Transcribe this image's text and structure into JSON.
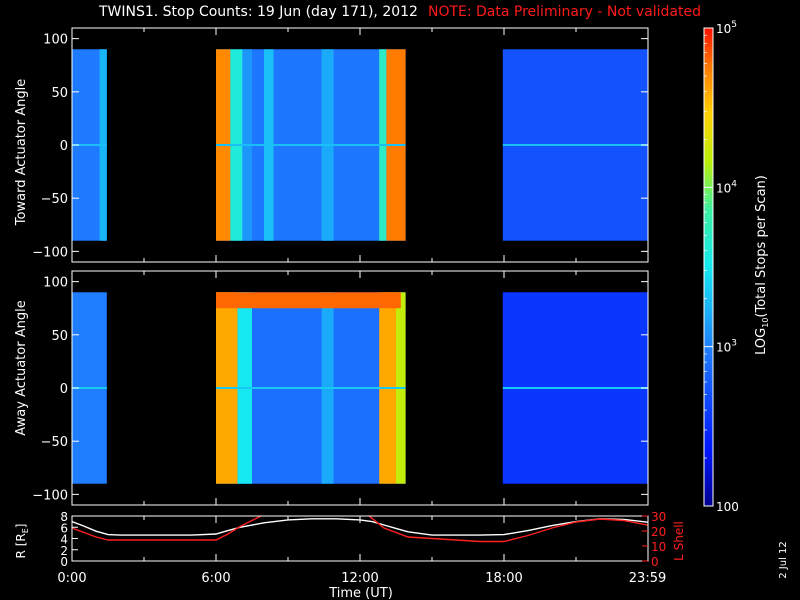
{
  "header": {
    "title": "TWINS1. Stop Counts: 19 Jun (day 171), 2012",
    "note": "NOTE: Data Preliminary - Not validated"
  },
  "footer": {
    "date_stamp": "2 Jul 12"
  },
  "colors": {
    "background": "#000000",
    "foreground": "#ffffff",
    "note": "#ff1a1a",
    "l_shell": "#ff2020",
    "r_line": "#ffffff"
  },
  "colorbar": {
    "label": "LOG10(Total Stops per Scan)",
    "label_prefix": "LOG",
    "label_sub": "10",
    "label_suffix": "(Total Stops per Scan)",
    "scale": "log",
    "range": [
      100,
      100000
    ],
    "ticks": [
      {
        "value": 100000,
        "base": "10",
        "exp": "5"
      },
      {
        "value": 10000,
        "base": "10",
        "exp": "4"
      },
      {
        "value": 1000,
        "base": "10",
        "exp": "3"
      },
      {
        "value": 100,
        "base": "100",
        "exp": ""
      }
    ]
  },
  "chart_data": [
    {
      "type": "heatmap",
      "name": "toward",
      "ylabel": "Toward Actuator Angle",
      "xlim": [
        0,
        24
      ],
      "ylim": [
        -110,
        110
      ],
      "yticks": [
        100,
        50,
        0,
        -50,
        -100
      ],
      "y_data_range": [
        -90,
        90
      ],
      "segments": [
        {
          "start": 0.0,
          "end": 1.45,
          "level": 2.96,
          "vstripe": {
            "start": 1.15,
            "end": 1.45,
            "level": 3.25
          }
        },
        {
          "start": 6.0,
          "end": 13.9,
          "level": 2.95
        },
        {
          "start": 17.95,
          "end": 23.98,
          "level": 2.72
        }
      ],
      "bands": [
        {
          "start": 6.0,
          "end": 6.6,
          "level": 4.7
        },
        {
          "start": 6.6,
          "end": 7.1,
          "level": 3.6
        },
        {
          "start": 7.1,
          "end": 7.5,
          "level": 3.1
        },
        {
          "start": 8.0,
          "end": 8.4,
          "level": 3.3
        },
        {
          "start": 10.4,
          "end": 10.9,
          "level": 3.2
        },
        {
          "start": 12.8,
          "end": 13.1,
          "level": 3.7
        },
        {
          "start": 13.1,
          "end": 13.9,
          "level": 4.75
        }
      ],
      "zero_line_level": 3.3
    },
    {
      "type": "heatmap",
      "name": "away",
      "ylabel": "Away Actuator Angle",
      "xlim": [
        0,
        24
      ],
      "ylim": [
        -110,
        110
      ],
      "yticks": [
        100,
        50,
        0,
        -50,
        -100
      ],
      "y_data_range": [
        -90,
        90
      ],
      "segments": [
        {
          "start": 0.0,
          "end": 1.45,
          "level": 2.98
        },
        {
          "start": 6.0,
          "end": 13.9,
          "level": 2.9
        },
        {
          "start": 17.95,
          "end": 23.98,
          "level": 2.55
        }
      ],
      "bands": [
        {
          "start": 6.0,
          "end": 6.9,
          "level": 4.6
        },
        {
          "start": 6.9,
          "end": 7.5,
          "level": 3.5
        },
        {
          "start": 10.4,
          "end": 10.9,
          "level": 3.2
        },
        {
          "start": 12.8,
          "end": 13.5,
          "level": 4.6
        },
        {
          "start": 13.5,
          "end": 13.9,
          "level": 4.2
        }
      ],
      "top_band": {
        "start": 6.0,
        "end": 13.7,
        "y_from": 75,
        "level": 4.8
      },
      "zero_line_level": 3.35
    },
    {
      "type": "line",
      "name": "ephemeris",
      "xlabel": "Time (UT)",
      "xlim": [
        0,
        24
      ],
      "xticks": [
        {
          "value": 0,
          "label": "0:00"
        },
        {
          "value": 6,
          "label": "6:00"
        },
        {
          "value": 12,
          "label": "12:00"
        },
        {
          "value": 18,
          "label": "18:00"
        },
        {
          "value": 23.98,
          "label": "23:59"
        }
      ],
      "left_axis": {
        "label_prefix": "R [R",
        "label_sub": "E",
        "label_suffix": "]",
        "ylim": [
          0,
          8
        ],
        "ticks": [
          0,
          2,
          4,
          6,
          8
        ]
      },
      "right_axis": {
        "label": "L Shell",
        "ylim": [
          0,
          30
        ],
        "ticks": [
          0,
          10,
          20,
          30
        ]
      },
      "series": [
        {
          "name": "R [RE]",
          "axis": "left",
          "color": "#ffffff",
          "x": [
            0,
            0.5,
            1.0,
            1.5,
            2,
            3,
            4,
            5,
            6,
            6.5,
            7,
            8,
            9,
            10,
            11,
            12,
            12.5,
            13,
            13.5,
            14,
            15,
            16,
            17,
            18,
            19,
            20,
            21,
            22,
            23,
            23.98
          ],
          "y": [
            7.0,
            6.2,
            5.3,
            4.7,
            4.6,
            4.6,
            4.6,
            4.6,
            4.8,
            5.4,
            6.0,
            6.8,
            7.3,
            7.5,
            7.5,
            7.3,
            7.0,
            6.4,
            5.8,
            5.2,
            4.6,
            4.6,
            4.6,
            4.7,
            5.4,
            6.3,
            7.0,
            7.5,
            7.4,
            6.9
          ]
        },
        {
          "name": "L Shell",
          "axis": "right",
          "color": "#ff2020",
          "x": [
            0,
            0.5,
            1.0,
            1.5,
            2,
            3,
            4,
            5,
            6,
            6.5,
            7,
            7.5,
            8.0,
            8.3,
            12.0,
            12.3,
            13.0,
            14,
            15,
            16,
            17,
            18,
            19,
            20,
            21,
            22,
            23,
            23.98
          ],
          "y": [
            22,
            19,
            16,
            14,
            14,
            14,
            14,
            14,
            14,
            18,
            23,
            27,
            31,
            33,
            33,
            31,
            22,
            16,
            15,
            14,
            13,
            13,
            17,
            22,
            26,
            28,
            27,
            24
          ]
        }
      ]
    }
  ]
}
